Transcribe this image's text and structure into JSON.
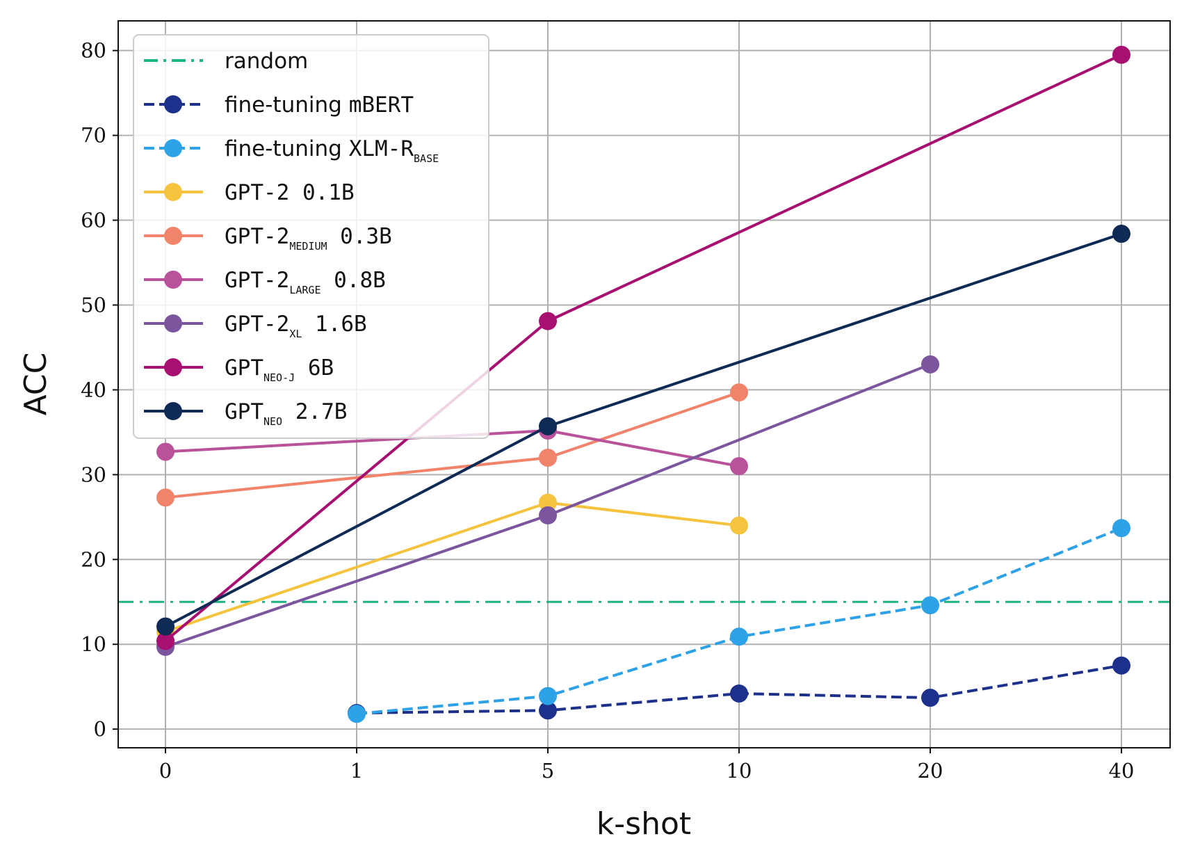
{
  "chart_data": {
    "type": "line",
    "title": "",
    "xlabel": "k-shot",
    "ylabel": "ACC",
    "categories": [
      "0",
      "1",
      "5",
      "10",
      "20",
      "40"
    ],
    "y_ticks": [
      "0",
      "10",
      "20",
      "30",
      "40",
      "50",
      "60",
      "70",
      "80"
    ],
    "ylim": [
      -2.2,
      83.5
    ],
    "grid": true,
    "legend_position": "upper-left",
    "reference_lines": [
      {
        "name": "random",
        "value": 15,
        "color": "#1db385",
        "style": "dashdot"
      }
    ],
    "series": [
      {
        "name": "fine-tuning mBERT",
        "prefix": "fine-tuning ",
        "mono": "mBERT",
        "sub": "",
        "suffix": "",
        "color": "#1d318c",
        "dashed": true,
        "values": [
          null,
          1.9,
          2.2,
          4.2,
          3.7,
          7.5
        ]
      },
      {
        "name": "fine-tuning XLM-R BASE",
        "prefix": "fine-tuning ",
        "mono": "XLM-R",
        "sub": "BASE",
        "suffix": "",
        "color": "#2ea2e6",
        "dashed": true,
        "values": [
          null,
          1.8,
          3.9,
          10.9,
          14.6,
          23.7
        ]
      },
      {
        "name": "GPT-2 0.1B",
        "prefix": "",
        "mono": "GPT-2 0.1B",
        "sub": "",
        "suffix": "",
        "color": "#f5c33e",
        "dashed": false,
        "values": [
          11.5,
          null,
          26.7,
          24.0,
          null,
          null
        ]
      },
      {
        "name": "GPT-2 MEDIUM 0.3B",
        "prefix": "",
        "mono": "GPT-2",
        "sub": "MEDIUM",
        "suffix": " 0.3B",
        "color": "#f2836b",
        "dashed": false,
        "values": [
          27.3,
          null,
          32.0,
          39.7,
          null,
          null
        ]
      },
      {
        "name": "GPT-2 LARGE 0.8B",
        "prefix": "",
        "mono": "GPT-2",
        "sub": "LARGE",
        "suffix": " 0.8B",
        "color": "#b9529b",
        "dashed": false,
        "values": [
          32.7,
          null,
          35.2,
          31.0,
          null,
          null
        ]
      },
      {
        "name": "GPT-2 XL 1.6B",
        "prefix": "",
        "mono": "GPT-2",
        "sub": "XL",
        "suffix": " 1.6B",
        "color": "#7b559e",
        "dashed": false,
        "values": [
          9.7,
          null,
          25.2,
          null,
          43.0,
          null
        ]
      },
      {
        "name": "GPT NEO-J 6B",
        "prefix": "",
        "mono": "GPT",
        "sub": "NEO-J",
        "suffix": " 6B",
        "color": "#a70f70",
        "dashed": false,
        "values": [
          10.4,
          null,
          48.1,
          null,
          null,
          79.5
        ]
      },
      {
        "name": "GPT NEO 2.7B",
        "prefix": "",
        "mono": "GPT",
        "sub": "NEO",
        "suffix": " 2.7B",
        "color": "#0e2a55",
        "dashed": false,
        "values": [
          12.1,
          null,
          35.7,
          null,
          null,
          58.4
        ]
      }
    ]
  }
}
